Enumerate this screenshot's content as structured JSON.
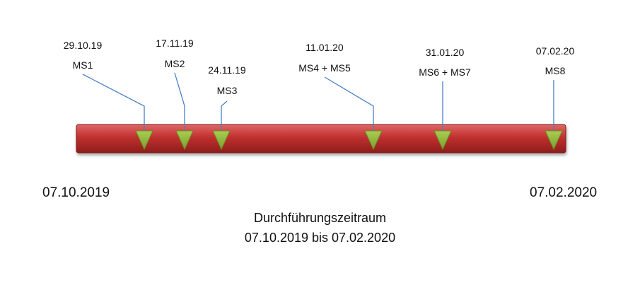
{
  "colors": {
    "bar_top": "#e06767",
    "bar_mid": "#c0302f",
    "bar_bottom": "#8e1d1c",
    "marker_fill": "#8cb036",
    "marker_stroke": "#6b8d22",
    "connector": "#4a7fc1"
  },
  "timeline": {
    "start_date": "2019-10-07",
    "end_date": "2020-02-07",
    "start_label": "07.10.2019",
    "end_label": "07.02.2020"
  },
  "milestones": [
    {
      "date": "2019-10-29",
      "date_label": "29.10.19",
      "name": "MS1"
    },
    {
      "date": "2019-11-17",
      "date_label": "17.11.19",
      "name": "MS2"
    },
    {
      "date": "2019-11-24",
      "date_label": "24.11.19",
      "name": "MS3"
    },
    {
      "date": "2020-01-11",
      "date_label": "11.01.20",
      "name": "MS4 + MS5"
    },
    {
      "date": "2020-01-31",
      "date_label": "31.01.20",
      "name": "MS6 + MS7"
    },
    {
      "date": "2020-02-07",
      "date_label": "07.02.20",
      "name": "MS8"
    }
  ],
  "caption": {
    "title": "Durchführungszeitraum",
    "range": "07.10.2019 bis 07.02.2020"
  }
}
